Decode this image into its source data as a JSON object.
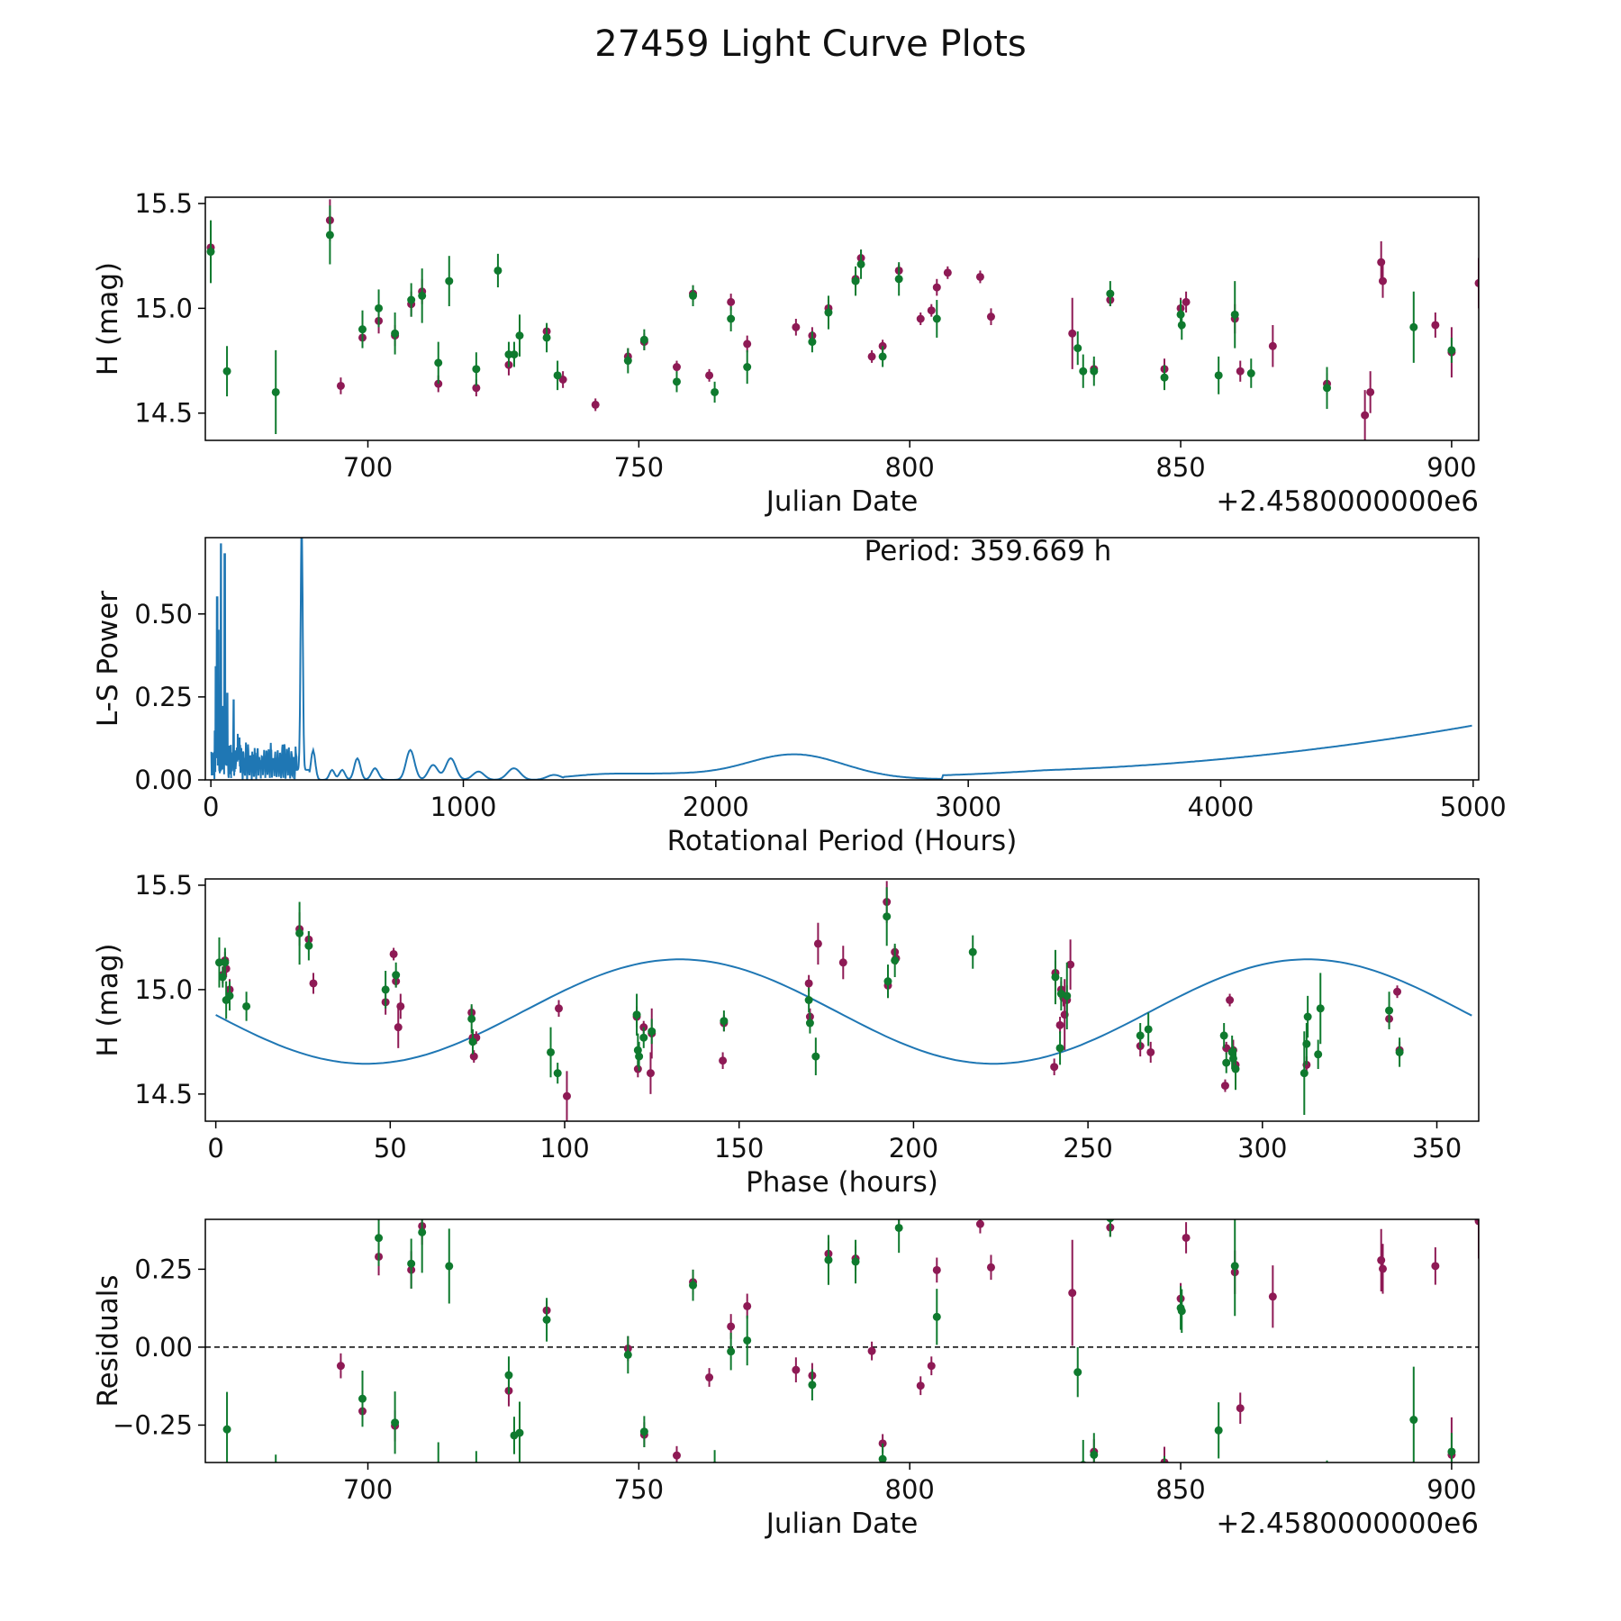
{
  "title": "27459 Light Curve Plots",
  "colors": {
    "series_a": "#8e1a55",
    "series_b": "#0f7a2e",
    "fit_line": "#1f77b4",
    "axis": "#000000"
  },
  "chart_data": [
    {
      "type": "scatter",
      "name": "light-curve",
      "xlabel": "Julian Date",
      "ylabel": "H (mag)",
      "offset_label": "+2.4580000000e6",
      "xlim": [
        670,
        905
      ],
      "ylim": [
        14.37,
        15.53
      ],
      "xticks": [
        700,
        750,
        800,
        850,
        900
      ],
      "yticks": [
        14.5,
        15.0,
        15.5
      ],
      "ytick_labels": [
        "14.5",
        "15.0",
        "15.5"
      ],
      "series": [
        {
          "name": "series-a",
          "color": "#8e1a55",
          "points": [
            [
              671,
              15.29,
              0.08
            ],
            [
              693,
              15.42,
              0.1
            ],
            [
              695,
              14.63,
              0.04
            ],
            [
              699,
              14.86,
              0.04
            ],
            [
              702,
              14.94,
              0.06
            ],
            [
              705,
              14.87,
              0.05
            ],
            [
              708,
              15.02,
              0.06
            ],
            [
              710,
              15.08,
              0.06
            ],
            [
              713,
              14.64,
              0.04
            ],
            [
              720,
              14.62,
              0.04
            ],
            [
              726,
              14.73,
              0.05
            ],
            [
              733,
              14.89,
              0.03
            ],
            [
              736,
              14.66,
              0.04
            ],
            [
              742,
              14.54,
              0.03
            ],
            [
              748,
              14.77,
              0.04
            ],
            [
              751,
              14.84,
              0.04
            ],
            [
              757,
              14.72,
              0.03
            ],
            [
              760,
              15.07,
              0.04
            ],
            [
              763,
              14.68,
              0.03
            ],
            [
              767,
              15.03,
              0.04
            ],
            [
              770,
              14.83,
              0.04
            ],
            [
              779,
              14.91,
              0.04
            ],
            [
              782,
              14.87,
              0.04
            ],
            [
              785,
              15.0,
              0.04
            ],
            [
              790,
              15.14,
              0.04
            ],
            [
              791,
              15.24,
              0.04
            ],
            [
              793,
              14.77,
              0.03
            ],
            [
              795,
              14.82,
              0.03
            ],
            [
              798,
              15.18,
              0.03
            ],
            [
              802,
              14.95,
              0.03
            ],
            [
              804,
              14.99,
              0.03
            ],
            [
              805,
              15.1,
              0.04
            ],
            [
              807,
              15.17,
              0.03
            ],
            [
              813,
              15.15,
              0.03
            ],
            [
              815,
              14.96,
              0.04
            ],
            [
              830,
              14.88,
              0.17
            ],
            [
              834,
              14.71,
              0.04
            ],
            [
              837,
              15.04,
              0.03
            ],
            [
              847,
              14.71,
              0.05
            ],
            [
              850,
              15.0,
              0.05
            ],
            [
              851,
              15.03,
              0.05
            ],
            [
              860,
              14.95,
              0.07
            ],
            [
              861,
              14.7,
              0.05
            ],
            [
              867,
              14.82,
              0.1
            ],
            [
              877,
              14.64,
              0.05
            ],
            [
              884,
              14.49,
              0.12
            ],
            [
              885,
              14.6,
              0.1
            ],
            [
              887,
              15.22,
              0.1
            ],
            [
              887.3,
              15.13,
              0.08
            ],
            [
              897,
              14.92,
              0.06
            ],
            [
              900,
              14.79,
              0.12
            ],
            [
              905,
              15.12,
              0.12
            ]
          ]
        },
        {
          "name": "series-b",
          "color": "#0f7a2e",
          "points": [
            [
              671,
              15.27,
              0.15
            ],
            [
              674,
              14.7,
              0.12
            ],
            [
              683,
              14.6,
              0.2
            ],
            [
              693,
              15.35,
              0.14
            ],
            [
              699,
              14.9,
              0.09
            ],
            [
              702,
              15.0,
              0.09
            ],
            [
              705,
              14.88,
              0.1
            ],
            [
              708,
              15.04,
              0.08
            ],
            [
              710,
              15.06,
              0.13
            ],
            [
              713,
              14.74,
              0.1
            ],
            [
              715,
              15.13,
              0.12
            ],
            [
              720,
              14.71,
              0.08
            ],
            [
              724,
              15.18,
              0.08
            ],
            [
              726,
              14.78,
              0.06
            ],
            [
              727,
              14.78,
              0.06
            ],
            [
              728,
              14.87,
              0.1
            ],
            [
              733,
              14.86,
              0.07
            ],
            [
              735,
              14.68,
              0.07
            ],
            [
              748,
              14.75,
              0.06
            ],
            [
              751,
              14.85,
              0.05
            ],
            [
              757,
              14.65,
              0.05
            ],
            [
              760,
              15.06,
              0.05
            ],
            [
              764,
              14.6,
              0.05
            ],
            [
              767,
              14.95,
              0.06
            ],
            [
              770,
              14.72,
              0.08
            ],
            [
              782,
              14.84,
              0.05
            ],
            [
              785,
              14.98,
              0.08
            ],
            [
              790,
              15.13,
              0.07
            ],
            [
              791,
              15.21,
              0.07
            ],
            [
              795,
              14.77,
              0.05
            ],
            [
              798,
              15.14,
              0.08
            ],
            [
              805,
              14.95,
              0.09
            ],
            [
              831,
              14.81,
              0.08
            ],
            [
              832,
              14.7,
              0.08
            ],
            [
              834,
              14.7,
              0.07
            ],
            [
              837,
              15.07,
              0.06
            ],
            [
              847,
              14.67,
              0.06
            ],
            [
              850,
              14.97,
              0.07
            ],
            [
              850.2,
              14.92,
              0.07
            ],
            [
              857,
              14.68,
              0.09
            ],
            [
              860,
              14.97,
              0.16
            ],
            [
              863,
              14.69,
              0.07
            ],
            [
              877,
              14.62,
              0.1
            ],
            [
              893,
              14.91,
              0.17
            ],
            [
              900,
              14.8,
              0.06
            ]
          ]
        }
      ]
    },
    {
      "type": "line",
      "name": "periodogram",
      "xlabel": "Rotational Period (Hours)",
      "ylabel": "L-S Power",
      "annotation": "Period: 359.669 h",
      "xlim": [
        -22,
        5022
      ],
      "ylim": [
        0,
        0.73
      ],
      "xticks": [
        0,
        1000,
        2000,
        3000,
        4000,
        5000
      ],
      "yticks": [
        0.0,
        0.25,
        0.5
      ],
      "ytick_labels": [
        "0.00",
        "0.25",
        "0.50"
      ],
      "peak_period": 359.669
    },
    {
      "type": "scatter",
      "name": "phased-curve",
      "xlabel": "Phase (hours)",
      "ylabel": "H (mag)",
      "xlim": [
        -3,
        362
      ],
      "ylim": [
        14.37,
        15.53
      ],
      "xticks": [
        0,
        50,
        100,
        150,
        200,
        250,
        300,
        350
      ],
      "yticks": [
        14.5,
        15.0,
        15.5
      ],
      "ytick_labels": [
        "14.5",
        "15.0",
        "15.5"
      ],
      "fit": {
        "mean": 14.895,
        "amplitude": 0.25,
        "period_hours": 179.83,
        "peak_phase": 133
      }
    },
    {
      "type": "scatter",
      "name": "residuals",
      "xlabel": "Julian Date",
      "ylabel": "Residuals",
      "offset_label": "+2.4580000000e6",
      "xlim": [
        670,
        905
      ],
      "ylim": [
        -0.37,
        0.41
      ],
      "xticks": [
        700,
        750,
        800,
        850,
        900
      ],
      "yticks": [
        -0.25,
        0.0,
        0.25
      ],
      "ytick_labels": [
        "−0.25",
        "0.00",
        "0.25"
      ],
      "zero_line": 0
    }
  ]
}
